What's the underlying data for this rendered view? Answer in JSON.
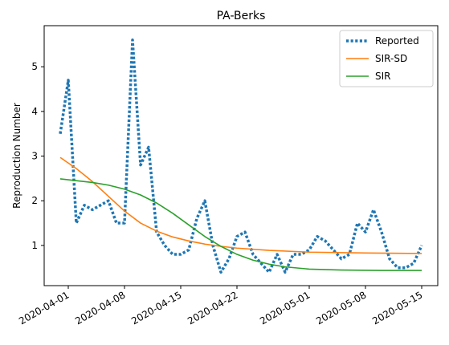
{
  "chart_data": {
    "type": "line",
    "title": "PA-Berks",
    "xlabel": "",
    "ylabel": "Reproduction Number",
    "x_axis": {
      "type": "date",
      "range": [
        "2020-03-29",
        "2020-05-17"
      ],
      "ticks": [
        "2020-04-01",
        "2020-04-08",
        "2020-04-15",
        "2020-04-22",
        "2020-05-01",
        "2020-05-08",
        "2020-05-15"
      ]
    },
    "y_axis": {
      "range": [
        0.1,
        5.92
      ],
      "ticks": [
        1,
        2,
        3,
        4,
        5
      ]
    },
    "grid": false,
    "legend_position": "top-right",
    "series": [
      {
        "name": "Reported",
        "color": "#1f77b4",
        "style": "dotted",
        "points": [
          [
            "2020-03-31",
            3.5
          ],
          [
            "2020-04-01",
            4.7
          ],
          [
            "2020-04-02",
            1.5
          ],
          [
            "2020-04-03",
            1.9
          ],
          [
            "2020-04-04",
            1.8
          ],
          [
            "2020-04-05",
            1.9
          ],
          [
            "2020-04-06",
            2.0
          ],
          [
            "2020-04-07",
            1.5
          ],
          [
            "2020-04-08",
            1.5
          ],
          [
            "2020-04-09",
            5.6
          ],
          [
            "2020-04-10",
            2.8
          ],
          [
            "2020-04-11",
            3.2
          ],
          [
            "2020-04-12",
            1.3
          ],
          [
            "2020-04-13",
            1.0
          ],
          [
            "2020-04-14",
            0.8
          ],
          [
            "2020-04-15",
            0.8
          ],
          [
            "2020-04-16",
            0.9
          ],
          [
            "2020-04-17",
            1.6
          ],
          [
            "2020-04-18",
            2.0
          ],
          [
            "2020-04-19",
            1.0
          ],
          [
            "2020-04-20",
            0.4
          ],
          [
            "2020-04-21",
            0.7
          ],
          [
            "2020-04-22",
            1.2
          ],
          [
            "2020-04-23",
            1.3
          ],
          [
            "2020-04-24",
            0.8
          ],
          [
            "2020-04-25",
            0.6
          ],
          [
            "2020-04-26",
            0.4
          ],
          [
            "2020-04-27",
            0.8
          ],
          [
            "2020-04-28",
            0.4
          ],
          [
            "2020-04-29",
            0.8
          ],
          [
            "2020-04-30",
            0.8
          ],
          [
            "2020-05-01",
            0.9
          ],
          [
            "2020-05-02",
            1.2
          ],
          [
            "2020-05-03",
            1.1
          ],
          [
            "2020-05-04",
            0.9
          ],
          [
            "2020-05-05",
            0.7
          ],
          [
            "2020-05-06",
            0.8
          ],
          [
            "2020-05-07",
            1.5
          ],
          [
            "2020-05-08",
            1.3
          ],
          [
            "2020-05-09",
            1.8
          ],
          [
            "2020-05-10",
            1.3
          ],
          [
            "2020-05-11",
            0.7
          ],
          [
            "2020-05-12",
            0.5
          ],
          [
            "2020-05-13",
            0.5
          ],
          [
            "2020-05-14",
            0.6
          ],
          [
            "2020-05-15",
            1.0
          ]
        ]
      },
      {
        "name": "SIR-SD",
        "color": "#ff7f0e",
        "style": "solid",
        "points": [
          [
            "2020-03-31",
            2.97
          ],
          [
            "2020-04-02",
            2.72
          ],
          [
            "2020-04-04",
            2.43
          ],
          [
            "2020-04-06",
            2.1
          ],
          [
            "2020-04-08",
            1.77
          ],
          [
            "2020-04-10",
            1.5
          ],
          [
            "2020-04-12",
            1.32
          ],
          [
            "2020-04-14",
            1.19
          ],
          [
            "2020-04-16",
            1.1
          ],
          [
            "2020-04-18",
            1.03
          ],
          [
            "2020-04-20",
            0.98
          ],
          [
            "2020-04-22",
            0.94
          ],
          [
            "2020-04-26",
            0.89
          ],
          [
            "2020-05-01",
            0.85
          ],
          [
            "2020-05-08",
            0.83
          ],
          [
            "2020-05-15",
            0.82
          ]
        ]
      },
      {
        "name": "SIR",
        "color": "#2ca02c",
        "style": "solid",
        "points": [
          [
            "2020-03-31",
            2.49
          ],
          [
            "2020-04-02",
            2.45
          ],
          [
            "2020-04-04",
            2.41
          ],
          [
            "2020-04-06",
            2.35
          ],
          [
            "2020-04-08",
            2.26
          ],
          [
            "2020-04-10",
            2.13
          ],
          [
            "2020-04-12",
            1.95
          ],
          [
            "2020-04-14",
            1.72
          ],
          [
            "2020-04-16",
            1.46
          ],
          [
            "2020-04-18",
            1.2
          ],
          [
            "2020-04-20",
            0.98
          ],
          [
            "2020-04-22",
            0.8
          ],
          [
            "2020-04-24",
            0.67
          ],
          [
            "2020-04-26",
            0.58
          ],
          [
            "2020-04-28",
            0.52
          ],
          [
            "2020-05-01",
            0.47
          ],
          [
            "2020-05-05",
            0.45
          ],
          [
            "2020-05-10",
            0.44
          ],
          [
            "2020-05-15",
            0.44
          ]
        ]
      }
    ]
  }
}
